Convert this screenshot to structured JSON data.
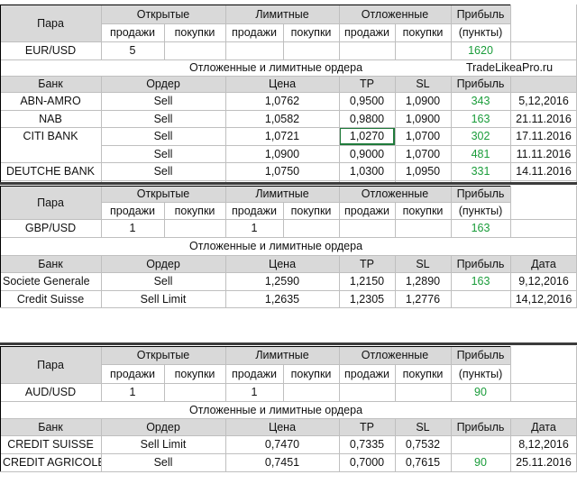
{
  "sections": [
    {
      "pair_header": "Пара",
      "group_open": "Открытые",
      "group_limit": "Лимитные",
      "group_pending": "Отложенные",
      "profit_label": "Прибыль",
      "profit_units": "(пункты)",
      "sub_sell": "продажи",
      "sub_buy": "покупки",
      "pair": "EUR/USD",
      "open_sell": "5",
      "open_buy": "",
      "limit_sell": "",
      "limit_buy": "",
      "pending_sell": "",
      "pending_buy": "",
      "profit": "1620",
      "orders_title": "Отложенные и лимитные ордера",
      "brand": "TradeLikeaPro.ru",
      "cols": {
        "bank": "Банк",
        "order": "Ордер",
        "price": "Цена",
        "tp": "ТР",
        "sl": "SL",
        "profit": "Прибыль",
        "date": ""
      },
      "orders": [
        {
          "bank": "ABN-AMRO",
          "order": "Sell",
          "price": "1,0762",
          "tp": "0,9500",
          "sl": "1,0900",
          "profit": "343",
          "date": "5,12,2016"
        },
        {
          "bank": "NAB",
          "order": "Sell",
          "price": "1,0582",
          "tp": "0,9800",
          "sl": "1,0900",
          "profit": "163",
          "date": "21.11.2016"
        },
        {
          "bank": "CITI BANK",
          "order": "Sell",
          "price": "1,0721",
          "tp": "1,0270",
          "sl": "1,0700",
          "profit": "302",
          "date": "17.11.2016"
        },
        {
          "bank": "",
          "order": "Sell",
          "price": "1,0900",
          "tp": "0,9000",
          "sl": "1,0700",
          "profit": "481",
          "date": "11.11.2016"
        },
        {
          "bank": "DEUTCHE BANK",
          "order": "Sell",
          "price": "1,0750",
          "tp": "1,0300",
          "sl": "1,0950",
          "profit": "331",
          "date": "14.11.2016"
        }
      ]
    },
    {
      "pair_header": "Пара",
      "group_open": "Открытые",
      "group_limit": "Лимитные",
      "group_pending": "Отложенные",
      "profit_label": "Прибыль",
      "profit_units": "(пункты)",
      "sub_sell": "продажи",
      "sub_buy": "покупки",
      "pair": "GBP/USD",
      "open_sell": "1",
      "open_buy": "",
      "limit_sell": "1",
      "limit_buy": "",
      "pending_sell": "",
      "pending_buy": "",
      "profit": "163",
      "orders_title": "Отложенные и лимитные ордера",
      "brand": "",
      "cols": {
        "bank": "Банк",
        "order": "Ордер",
        "price": "Цена",
        "tp": "ТР",
        "sl": "SL",
        "profit": "Прибыль",
        "date": "Дата"
      },
      "orders": [
        {
          "bank": "Societe Generale",
          "order": "Sell",
          "price": "1,2590",
          "tp": "1,2150",
          "sl": "1,2890",
          "profit": "163",
          "date": "9,12,2016"
        },
        {
          "bank": "Credit Suisse",
          "order": "Sell Limit",
          "price": "1,2635",
          "tp": "1,2305",
          "sl": "1,2776",
          "profit": "",
          "date": "14,12,2016"
        }
      ]
    },
    {
      "pair_header": "Пара",
      "group_open": "Открытые",
      "group_limit": "Лимитные",
      "group_pending": "Отложенные",
      "profit_label": "Прибыль",
      "profit_units": "(пункты)",
      "sub_sell": "продажи",
      "sub_buy": "покупки",
      "pair": "AUD/USD",
      "open_sell": "1",
      "open_buy": "",
      "limit_sell": "1",
      "limit_buy": "",
      "pending_sell": "",
      "pending_buy": "",
      "profit": "90",
      "orders_title": "Отложенные и лимитные ордера",
      "brand": "",
      "cols": {
        "bank": "Банк",
        "order": "Ордер",
        "price": "Цена",
        "tp": "ТР",
        "sl": "SL",
        "profit": "Прибыль",
        "date": "Дата"
      },
      "orders": [
        {
          "bank": "CREDIT SUISSE",
          "order": "Sell Limit",
          "price": "0,7470",
          "tp": "0,7335",
          "sl": "0,7532",
          "profit": "",
          "date": "8,12,2016"
        },
        {
          "bank": "CREDIT AGRICOLE",
          "order": "Sell",
          "price": "0,7451",
          "tp": "0,7000",
          "sl": "0,7615",
          "profit": "90",
          "date": "25.11.2016"
        }
      ]
    }
  ],
  "colors": {
    "header_fill": "#d9d9d9",
    "profit_green": "#1a9c3a",
    "separator": "#3c3c3c"
  }
}
